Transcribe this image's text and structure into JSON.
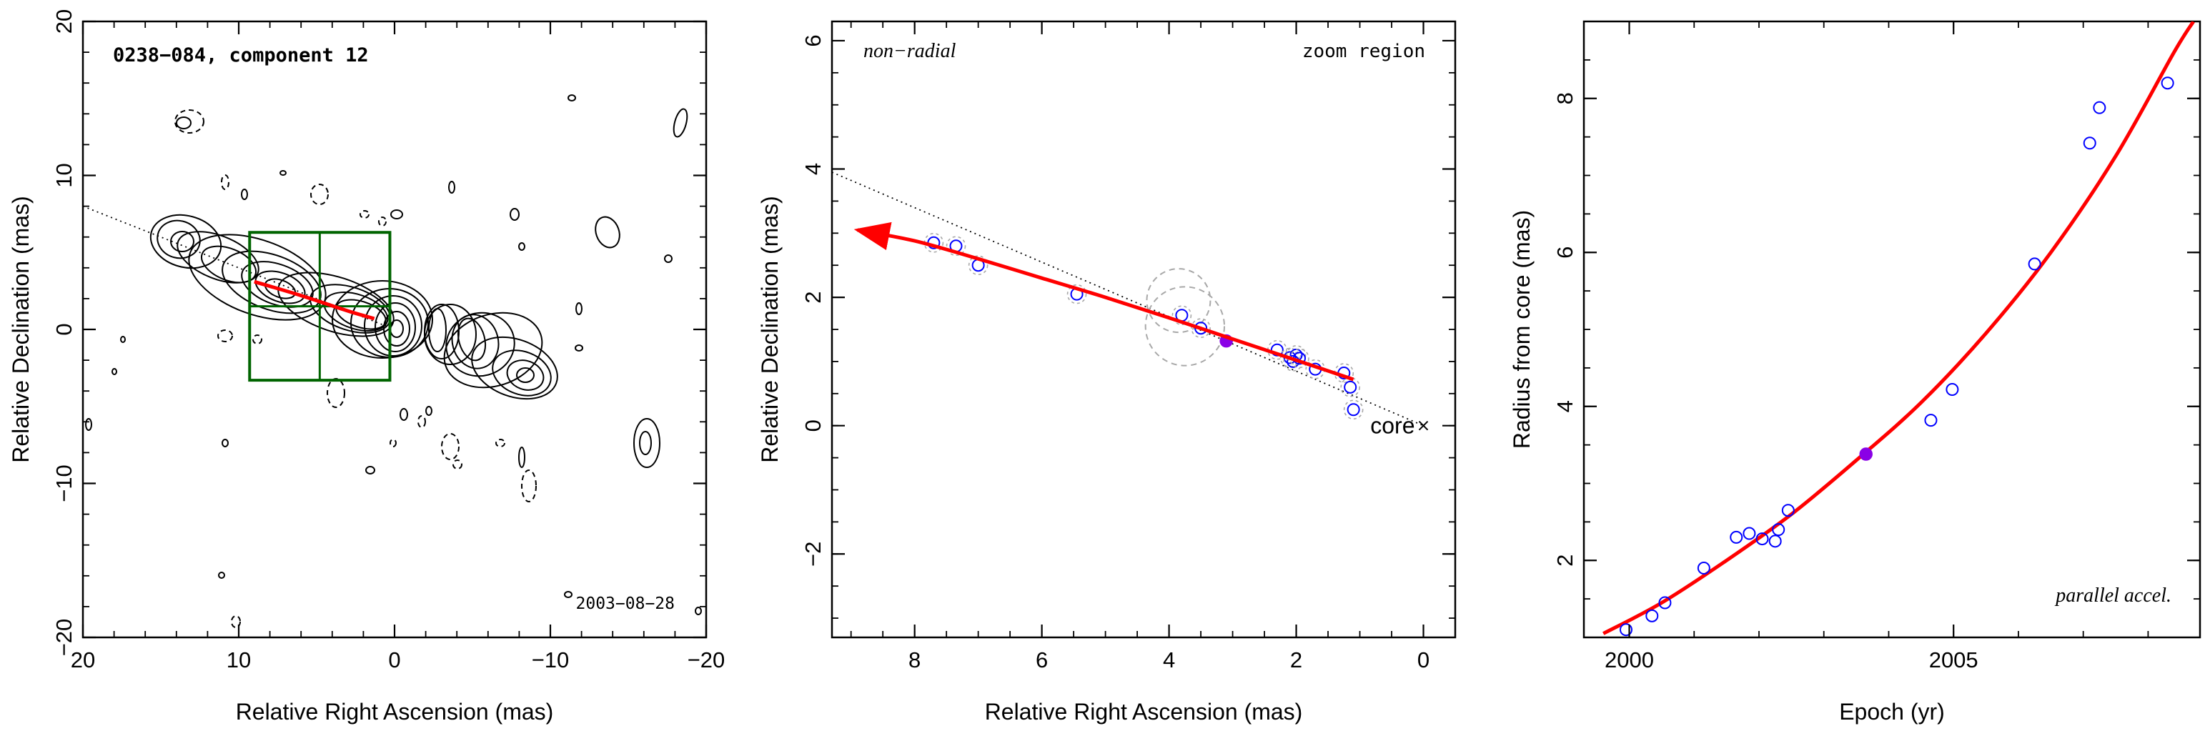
{
  "colors": {
    "fit_line": "#ff0000",
    "points": "#0000ff",
    "highlight_point": "#8a00e6",
    "zoom_box": "#006400",
    "circles": "#a8a8a8",
    "contours": "#000000"
  },
  "chart_data": [
    {
      "type": "contour",
      "title": "0238−084, component 12",
      "annotation": "2003−08−28",
      "xlabel": "Relative Right Ascension (mas)",
      "ylabel": "Relative Declination (mas)",
      "xlim": [
        20,
        -20
      ],
      "ylim": [
        -20,
        20
      ],
      "xticks": [
        20,
        10,
        0,
        -10,
        -20
      ],
      "xtick_labels": [
        "20",
        "10",
        "0",
        "−10",
        "−20"
      ],
      "yticks": [
        -20,
        -10,
        0,
        10,
        20
      ],
      "ytick_labels": [
        "−20",
        "−10",
        "0",
        "10",
        "20"
      ],
      "zoom_box": {
        "x_range": [
          9.3,
          0.3
        ],
        "y_range": [
          -3.3,
          6.3
        ]
      },
      "fit_track": [
        [
          9,
          3.1
        ],
        [
          6,
          2.2
        ],
        [
          3,
          1.2
        ],
        [
          1.3,
          0.7
        ]
      ],
      "direction_line": [
        [
          20,
          8
        ],
        [
          0,
          0
        ]
      ]
    },
    {
      "type": "scatter",
      "corner_labels": {
        "left": "non−radial",
        "right": "zoom region"
      },
      "core_label": "core",
      "xlabel": "Relative Right Ascension (mas)",
      "ylabel": "Relative Declination (mas)",
      "xlim": [
        9.3,
        -0.5
      ],
      "ylim": [
        -3.3,
        6.3
      ],
      "xticks": [
        8,
        6,
        4,
        2,
        0
      ],
      "xtick_labels": [
        "8",
        "6",
        "4",
        "2",
        "0"
      ],
      "yticks": [
        -2,
        0,
        2,
        4,
        6
      ],
      "ytick_labels": [
        "−2",
        "0",
        "2",
        "4",
        "6"
      ],
      "points": [
        [
          7.7,
          2.85
        ],
        [
          7.35,
          2.8
        ],
        [
          7.0,
          2.5
        ],
        [
          5.45,
          2.05
        ],
        [
          3.8,
          1.72
        ],
        [
          3.5,
          1.52
        ],
        [
          2.3,
          1.18
        ],
        [
          2.1,
          1.06
        ],
        [
          2.05,
          1.0
        ],
        [
          2.0,
          1.1
        ],
        [
          1.95,
          1.05
        ],
        [
          1.7,
          0.88
        ],
        [
          1.25,
          0.82
        ],
        [
          1.15,
          0.6
        ],
        [
          1.1,
          0.25
        ]
      ],
      "highlight_point": [
        3.1,
        1.32
      ],
      "circles": [
        {
          "x": 3.85,
          "y": 1.95,
          "r": 0.5
        },
        {
          "x": 3.75,
          "y": 1.55,
          "r": 0.62
        }
      ],
      "fit_curve": [
        [
          8.9,
          3.05
        ],
        [
          8.0,
          2.88
        ],
        [
          7.0,
          2.6
        ],
        [
          6.0,
          2.3
        ],
        [
          5.0,
          2.0
        ],
        [
          4.0,
          1.68
        ],
        [
          3.0,
          1.35
        ],
        [
          2.0,
          1.02
        ],
        [
          1.1,
          0.72
        ]
      ],
      "direction_line": [
        [
          9.3,
          3.95
        ],
        [
          0.0,
          0.0
        ]
      ],
      "core_position": [
        0.0,
        0.0
      ]
    },
    {
      "type": "scatter",
      "corner_label": "parallel accel.",
      "xlabel": "Epoch (yr)",
      "ylabel": "Radius from core (mas)",
      "xlim": [
        1999.3,
        2008.8
      ],
      "ylim": [
        1.0,
        9.0
      ],
      "xticks": [
        2000,
        2005
      ],
      "xtick_labels": [
        "2000",
        "2005"
      ],
      "yticks": [
        2,
        4,
        6,
        8
      ],
      "ytick_labels": [
        "2",
        "4",
        "6",
        "8"
      ],
      "points": [
        [
          1999.95,
          1.1
        ],
        [
          2000.35,
          1.28
        ],
        [
          2000.55,
          1.45
        ],
        [
          2001.15,
          1.9
        ],
        [
          2001.65,
          2.3
        ],
        [
          2001.85,
          2.35
        ],
        [
          2002.05,
          2.28
        ],
        [
          2002.25,
          2.25
        ],
        [
          2002.3,
          2.4
        ],
        [
          2002.45,
          2.65
        ],
        [
          2004.65,
          3.82
        ],
        [
          2004.98,
          4.22
        ],
        [
          2006.25,
          5.85
        ],
        [
          2007.1,
          7.42
        ],
        [
          2007.25,
          7.88
        ],
        [
          2008.3,
          8.2
        ]
      ],
      "highlight_point": [
        2003.65,
        3.38
      ],
      "fit_curve": [
        [
          1999.6,
          1.05
        ],
        [
          2000.5,
          1.45
        ],
        [
          2001.5,
          2.0
        ],
        [
          2002.5,
          2.6
        ],
        [
          2003.5,
          3.3
        ],
        [
          2004.5,
          4.05
        ],
        [
          2005.5,
          4.95
        ],
        [
          2006.5,
          6.0
        ],
        [
          2007.5,
          7.25
        ],
        [
          2008.4,
          8.6
        ],
        [
          2008.7,
          9.0
        ]
      ]
    }
  ]
}
